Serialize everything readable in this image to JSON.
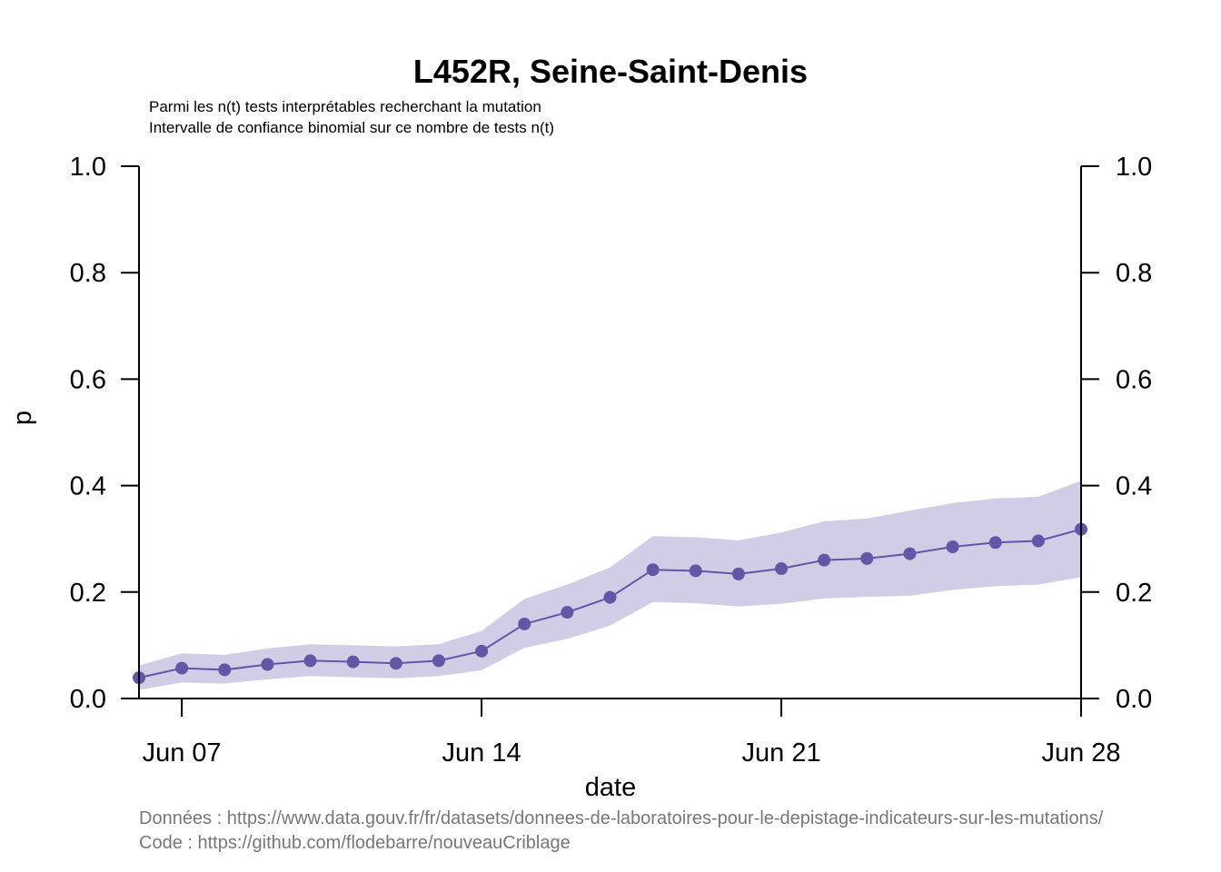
{
  "chart_data": {
    "type": "line",
    "title": "L452R, Seine-Saint-Denis",
    "subtitle_lines": [
      "Parmi les n(t) tests interprétables recherchant la mutation",
      "Intervalle de confiance binomial sur ce nombre de tests n(t)"
    ],
    "xlabel": "date",
    "ylabel": "p",
    "ylim": [
      0,
      1
    ],
    "y_ticks": [
      "0.0",
      "0.2",
      "0.4",
      "0.6",
      "0.8",
      "1.0"
    ],
    "y_tick_values": [
      0,
      0.2,
      0.4,
      0.6,
      0.8,
      1.0
    ],
    "x_range": [
      "2021-06-06",
      "2021-06-28"
    ],
    "x_ticks": [
      {
        "date": "2021-06-07",
        "label": "Jun 07"
      },
      {
        "date": "2021-06-14",
        "label": "Jun 14"
      },
      {
        "date": "2021-06-21",
        "label": "Jun 21"
      },
      {
        "date": "2021-06-28",
        "label": "Jun 28"
      }
    ],
    "series": [
      {
        "x": [
          "2021-06-06",
          "2021-06-07",
          "2021-06-08",
          "2021-06-09",
          "2021-06-10",
          "2021-06-11",
          "2021-06-12",
          "2021-06-13",
          "2021-06-14",
          "2021-06-15",
          "2021-06-16",
          "2021-06-17",
          "2021-06-18",
          "2021-06-19",
          "2021-06-20",
          "2021-06-21",
          "2021-06-22",
          "2021-06-23",
          "2021-06-24",
          "2021-06-25",
          "2021-06-26",
          "2021-06-27",
          "2021-06-28"
        ],
        "values": [
          0.039,
          0.057,
          0.054,
          0.064,
          0.071,
          0.069,
          0.066,
          0.071,
          0.089,
          0.14,
          0.162,
          0.19,
          0.242,
          0.24,
          0.234,
          0.244,
          0.26,
          0.263,
          0.272,
          0.285,
          0.293,
          0.296,
          0.318
        ],
        "ci_lower": [
          0.016,
          0.03,
          0.028,
          0.036,
          0.042,
          0.04,
          0.038,
          0.042,
          0.053,
          0.095,
          0.112,
          0.137,
          0.181,
          0.179,
          0.173,
          0.178,
          0.188,
          0.191,
          0.193,
          0.204,
          0.211,
          0.214,
          0.228
        ],
        "ci_upper": [
          0.062,
          0.085,
          0.082,
          0.094,
          0.102,
          0.1,
          0.098,
          0.102,
          0.127,
          0.187,
          0.214,
          0.246,
          0.305,
          0.303,
          0.297,
          0.312,
          0.333,
          0.338,
          0.353,
          0.367,
          0.376,
          0.379,
          0.409
        ]
      }
    ],
    "colors": {
      "line": "#6356a6",
      "band": "#d0cde6"
    },
    "grid": false,
    "captions": [
      "Données : https://www.data.gouv.fr/fr/datasets/donnees-de-laboratoires-pour-le-depistage-indicateurs-sur-les-mutations/",
      "Code : https://github.com/flodebarre/nouveauCriblage"
    ]
  }
}
